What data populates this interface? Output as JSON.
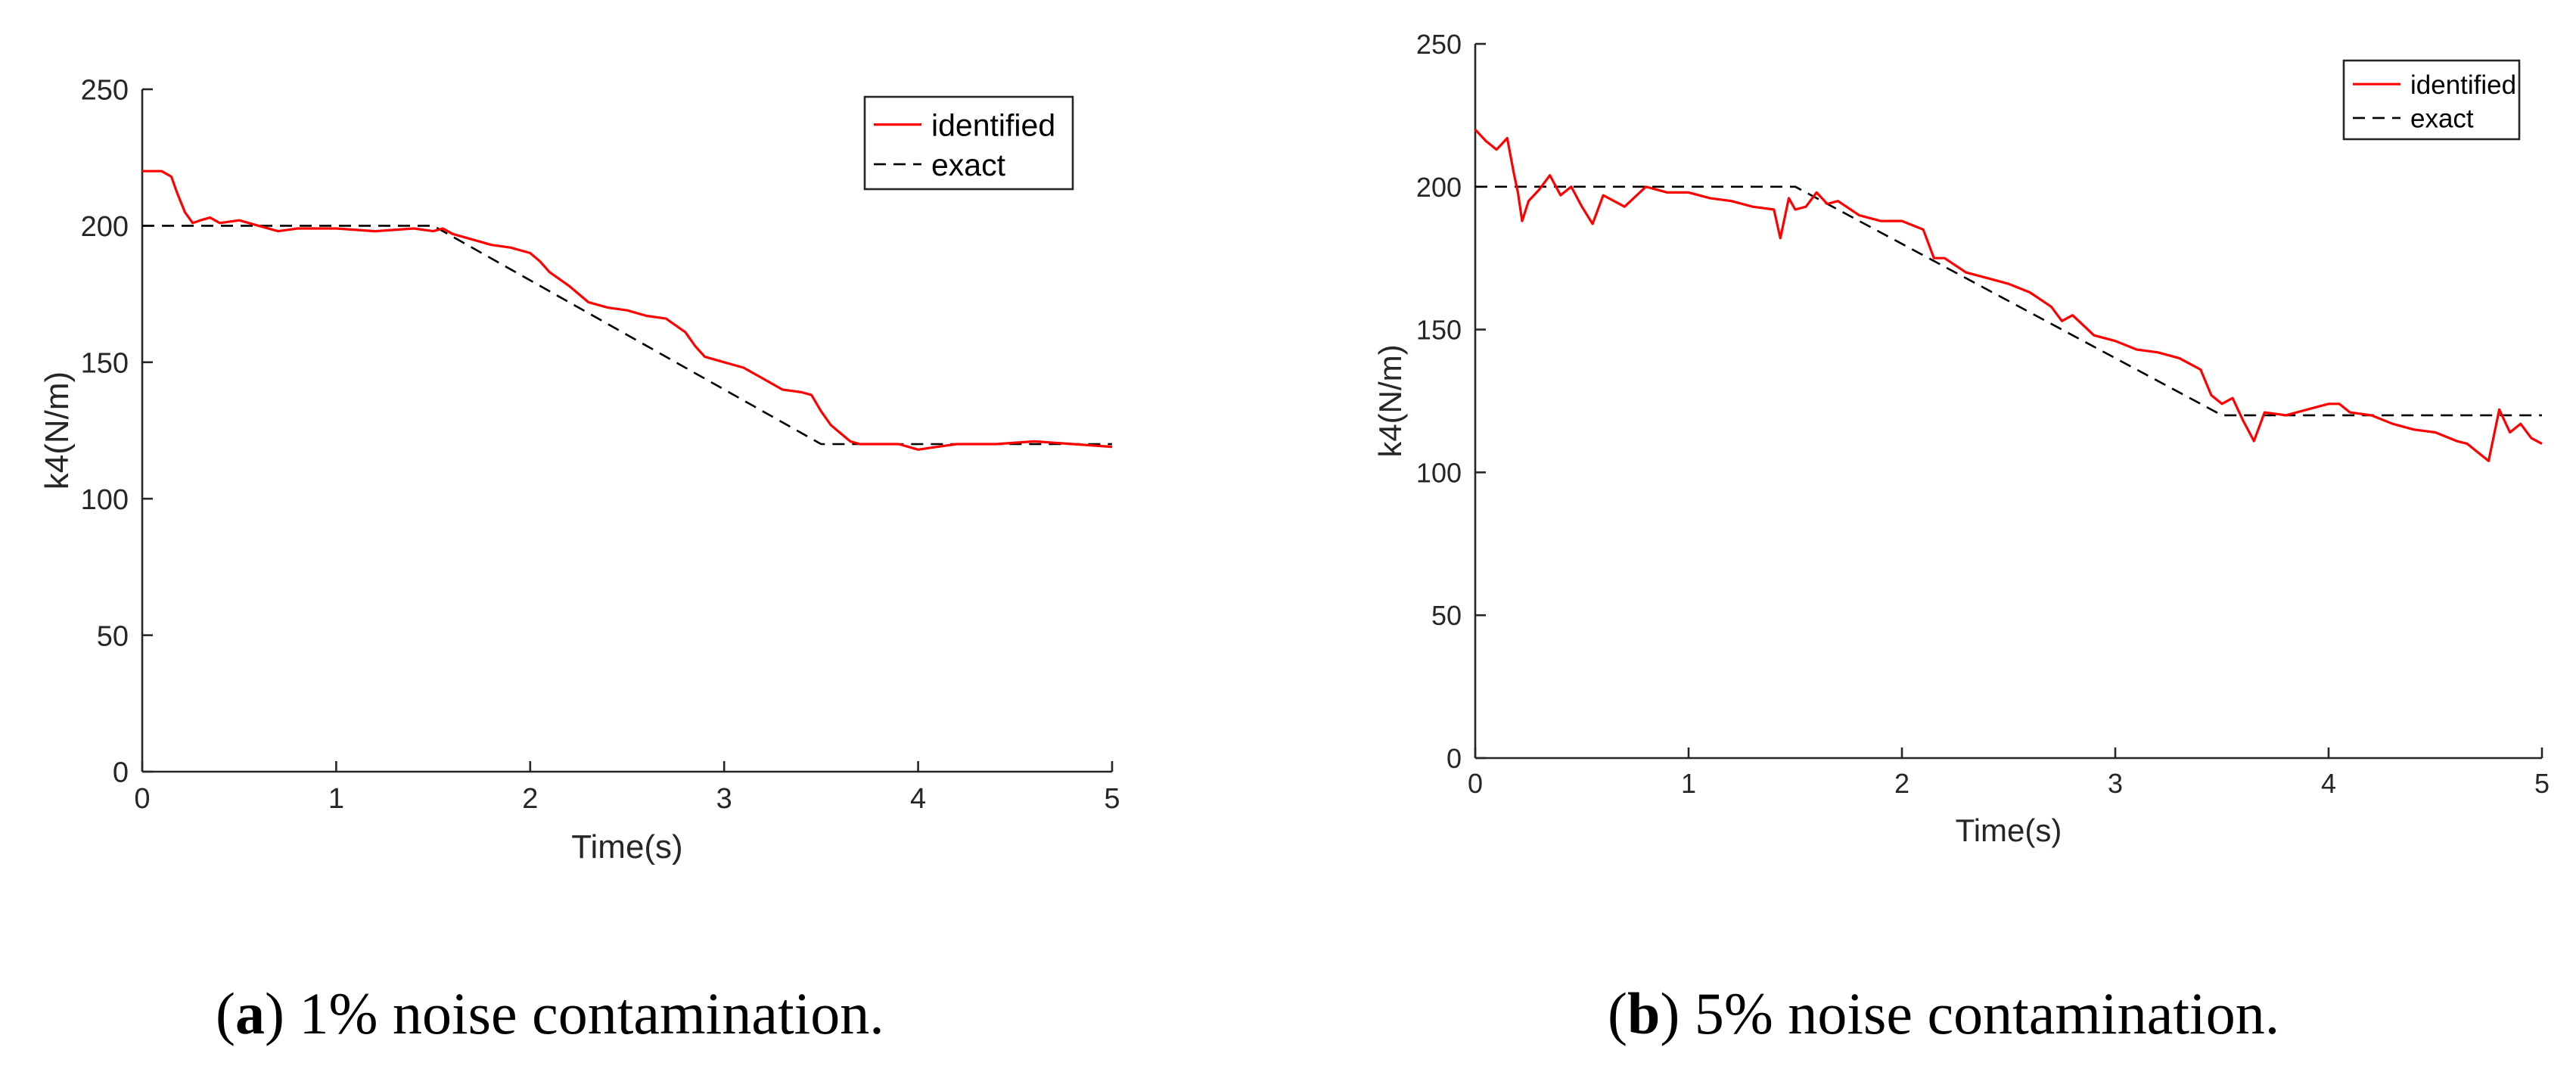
{
  "chart_data": [
    {
      "type": "line",
      "caption_label": "a",
      "caption_text": "1% noise contamination.",
      "xlabel": "Time(s)",
      "ylabel": "k4(N/m)",
      "xlim": [
        0,
        5
      ],
      "ylim": [
        0,
        250
      ],
      "xticks": [
        0,
        1,
        2,
        3,
        4,
        5
      ],
      "yticks": [
        0,
        50,
        100,
        150,
        200,
        250
      ],
      "grid": false,
      "legend_position": "top-right",
      "series": [
        {
          "name": "identified",
          "color": "#ff0000",
          "style": "solid",
          "x": [
            0,
            0.1,
            0.15,
            0.18,
            0.22,
            0.26,
            0.3,
            0.35,
            0.4,
            0.5,
            0.6,
            0.7,
            0.8,
            1.0,
            1.2,
            1.4,
            1.5,
            1.55,
            1.6,
            1.7,
            1.8,
            1.9,
            2.0,
            2.05,
            2.1,
            2.2,
            2.3,
            2.4,
            2.5,
            2.6,
            2.7,
            2.8,
            2.85,
            2.9,
            3.0,
            3.1,
            3.2,
            3.3,
            3.4,
            3.45,
            3.5,
            3.55,
            3.6,
            3.65,
            3.7,
            3.8,
            3.9,
            4.0,
            4.1,
            4.2,
            4.4,
            4.6,
            4.8,
            5.0
          ],
          "y": [
            220,
            220,
            218,
            212,
            205,
            201,
            202,
            203,
            201,
            202,
            200,
            198,
            199,
            199,
            198,
            199,
            198,
            199,
            197,
            195,
            193,
            192,
            190,
            187,
            183,
            178,
            172,
            170,
            169,
            167,
            166,
            161,
            156,
            152,
            150,
            148,
            144,
            140,
            139,
            138,
            132,
            127,
            124,
            121,
            120,
            120,
            120,
            118,
            119,
            120,
            120,
            121,
            120,
            119
          ]
        },
        {
          "name": "exact",
          "color": "#000000",
          "style": "dashed",
          "x": [
            0,
            1.5,
            3.5,
            5
          ],
          "y": [
            200,
            200,
            120,
            120
          ]
        }
      ]
    },
    {
      "type": "line",
      "caption_label": "b",
      "caption_text": "5% noise contamination.",
      "xlabel": "Time(s)",
      "ylabel": "k4(N/m)",
      "xlim": [
        0,
        5
      ],
      "ylim": [
        0,
        250
      ],
      "xticks": [
        0,
        1,
        2,
        3,
        4,
        5
      ],
      "yticks": [
        0,
        50,
        100,
        150,
        200,
        250
      ],
      "grid": false,
      "legend_position": "top-right",
      "series": [
        {
          "name": "identified",
          "color": "#ff0000",
          "style": "solid",
          "x": [
            0,
            0.05,
            0.1,
            0.15,
            0.18,
            0.2,
            0.22,
            0.25,
            0.3,
            0.35,
            0.4,
            0.45,
            0.5,
            0.55,
            0.6,
            0.7,
            0.8,
            0.9,
            1.0,
            1.1,
            1.2,
            1.3,
            1.4,
            1.43,
            1.47,
            1.5,
            1.55,
            1.6,
            1.65,
            1.7,
            1.8,
            1.9,
            2.0,
            2.1,
            2.15,
            2.2,
            2.3,
            2.4,
            2.5,
            2.6,
            2.7,
            2.75,
            2.8,
            2.9,
            3.0,
            3.1,
            3.2,
            3.3,
            3.35,
            3.4,
            3.45,
            3.5,
            3.55,
            3.6,
            3.65,
            3.7,
            3.8,
            3.9,
            4.0,
            4.05,
            4.1,
            4.2,
            4.3,
            4.4,
            4.5,
            4.6,
            4.65,
            4.7,
            4.75,
            4.8,
            4.85,
            4.9,
            4.95,
            5.0
          ],
          "y": [
            220,
            216,
            213,
            217,
            205,
            198,
            188,
            195,
            199,
            204,
            197,
            200,
            193,
            187,
            197,
            193,
            200,
            198,
            198,
            196,
            195,
            193,
            192,
            182,
            196,
            192,
            193,
            198,
            194,
            195,
            190,
            188,
            188,
            185,
            175,
            175,
            170,
            168,
            166,
            163,
            158,
            153,
            155,
            148,
            146,
            143,
            142,
            140,
            138,
            136,
            127,
            124,
            126,
            118,
            111,
            121,
            120,
            122,
            124,
            124,
            121,
            120,
            117,
            115,
            114,
            111,
            110,
            107,
            104,
            122,
            114,
            117,
            112,
            110
          ]
        },
        {
          "name": "exact",
          "color": "#000000",
          "style": "dashed",
          "x": [
            0,
            1.5,
            3.5,
            5
          ],
          "y": [
            200,
            200,
            120,
            120
          ]
        }
      ]
    }
  ]
}
